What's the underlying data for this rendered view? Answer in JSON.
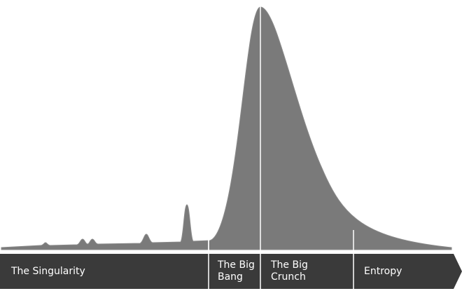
{
  "phases": [
    {
      "label": "The Singularity"
    },
    {
      "label": "The Big Bang"
    },
    {
      "label": "The Big Crunch"
    },
    {
      "label": "Entropy"
    }
  ]
}
